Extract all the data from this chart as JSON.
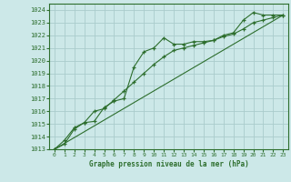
{
  "title": "Graphe pression niveau de la mer (hPa)",
  "bg_color": "#cce8e8",
  "grid_color": "#aacccc",
  "line_color": "#2d6e2d",
  "border_color": "#2d6e2d",
  "xlim": [
    -0.5,
    23.5
  ],
  "ylim": [
    1013,
    1024.5
  ],
  "yticks": [
    1013,
    1014,
    1015,
    1016,
    1017,
    1018,
    1019,
    1020,
    1021,
    1022,
    1023,
    1024
  ],
  "xticks": [
    0,
    1,
    2,
    3,
    4,
    5,
    6,
    7,
    8,
    9,
    10,
    11,
    12,
    13,
    14,
    15,
    16,
    17,
    18,
    19,
    20,
    21,
    22,
    23
  ],
  "series1_x": [
    0,
    1,
    2,
    3,
    4,
    5,
    6,
    7,
    8,
    9,
    10,
    11,
    12,
    13,
    14,
    15,
    16,
    17,
    18,
    19,
    20,
    21,
    22,
    23
  ],
  "series1_y": [
    1013.0,
    1013.7,
    1014.7,
    1015.1,
    1015.2,
    1016.3,
    1016.8,
    1017.0,
    1019.5,
    1020.7,
    1021.0,
    1021.8,
    1021.3,
    1021.3,
    1021.5,
    1021.5,
    1021.6,
    1022.0,
    1022.2,
    1023.2,
    1023.8,
    1023.6,
    1023.6,
    1023.6
  ],
  "series2_x": [
    0,
    23
  ],
  "series2_y": [
    1013.0,
    1023.6
  ],
  "series3_x": [
    0,
    1,
    2,
    3,
    4,
    5,
    6,
    7,
    8,
    9,
    10,
    11,
    12,
    13,
    14,
    15,
    16,
    17,
    18,
    19,
    20,
    21,
    22,
    23
  ],
  "series3_y": [
    1013.0,
    1013.4,
    1014.6,
    1015.1,
    1016.0,
    1016.2,
    1016.9,
    1017.6,
    1018.3,
    1019.0,
    1019.7,
    1020.3,
    1020.8,
    1021.0,
    1021.2,
    1021.4,
    1021.6,
    1021.9,
    1022.1,
    1022.5,
    1023.0,
    1023.2,
    1023.4,
    1023.6
  ]
}
